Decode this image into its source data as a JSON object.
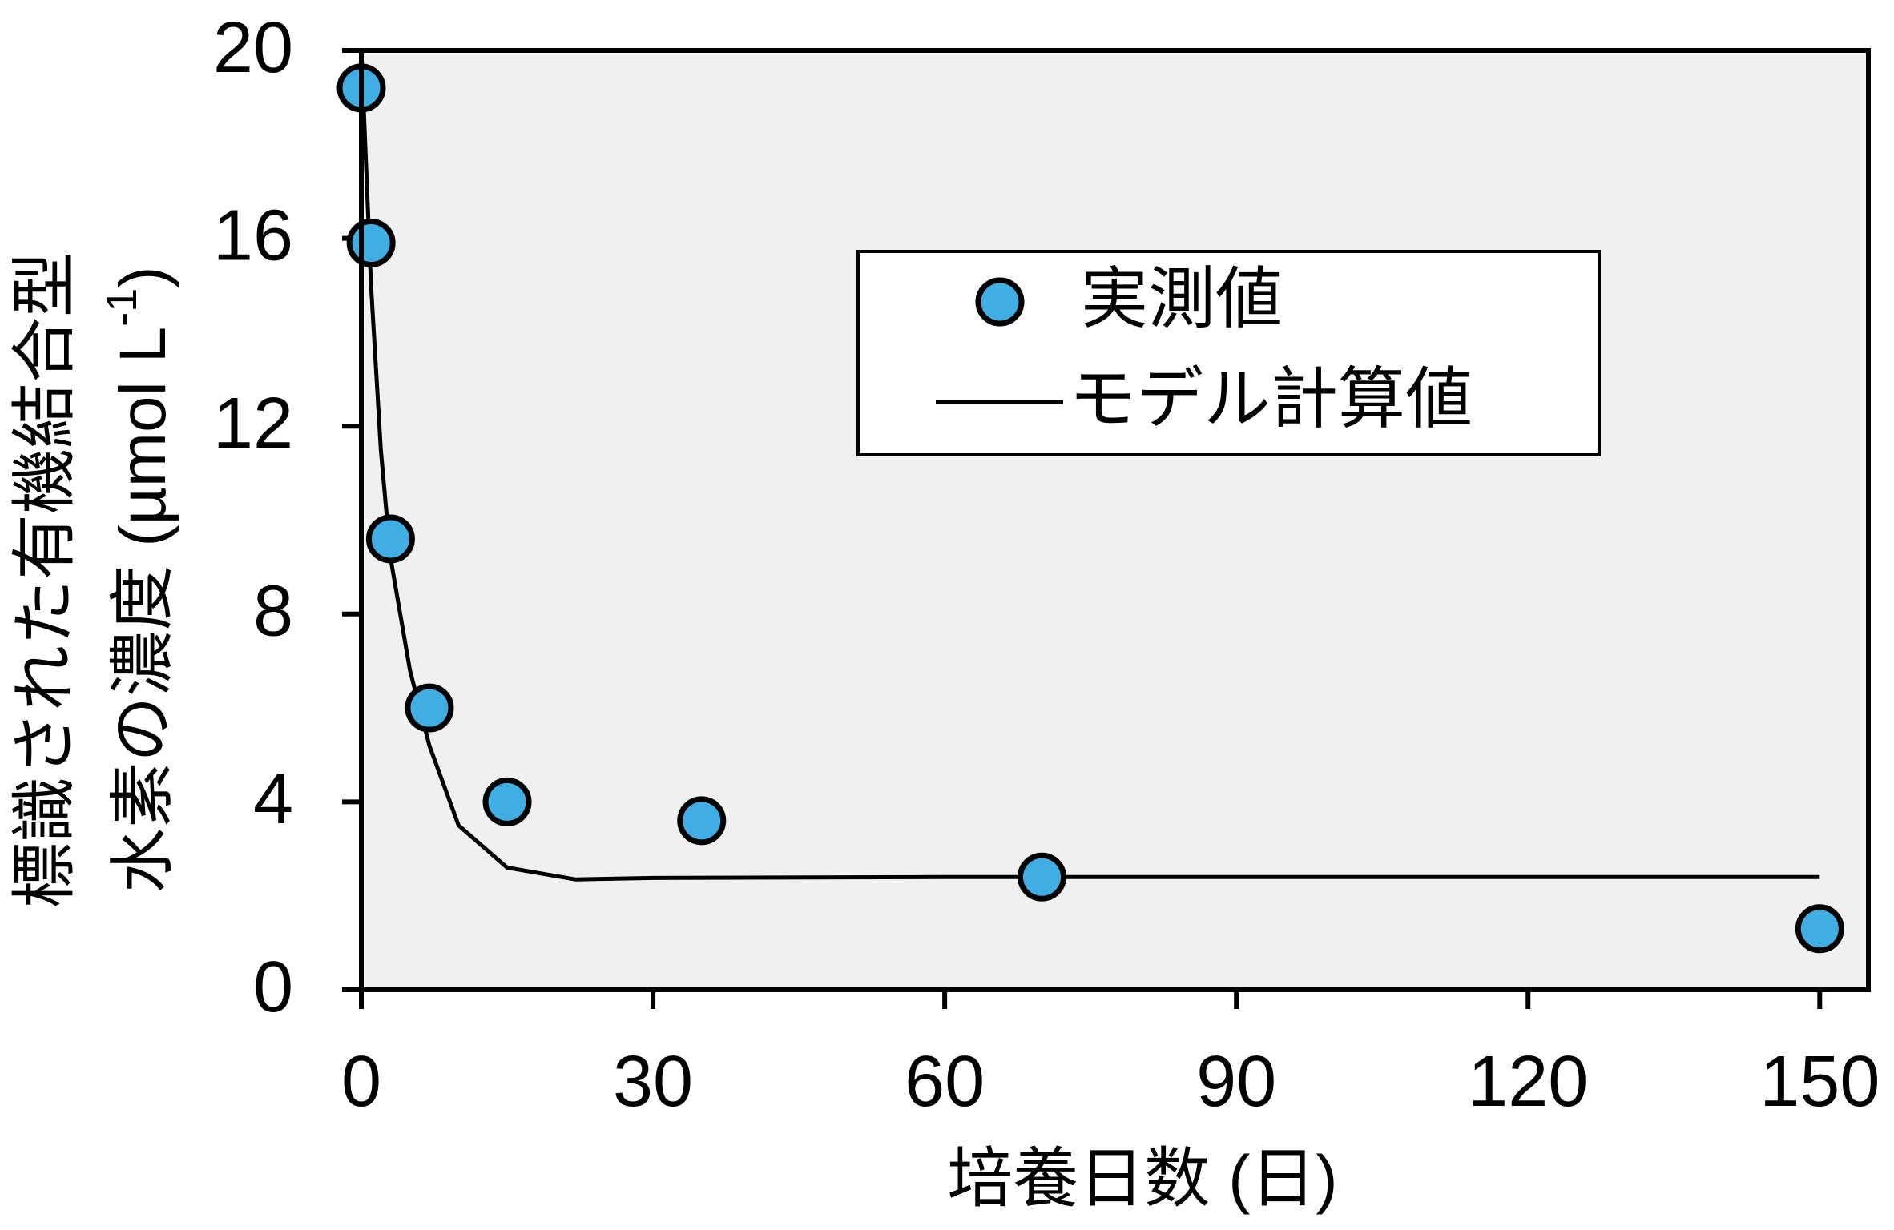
{
  "chart_data": {
    "type": "scatter",
    "y_label_line1": "標識された有機結合型",
    "y_label_line2": "水素の濃度 (µmol L",
    "y_label_sup": "-1",
    "y_label_end": ")",
    "x_label": "培養日数 (日)",
    "xlim": [
      0,
      155
    ],
    "ylim": [
      0,
      20
    ],
    "xticks": [
      0,
      30,
      60,
      90,
      120,
      150
    ],
    "yticks": [
      0,
      4,
      8,
      12,
      16,
      20
    ],
    "grid": false,
    "background": "#f0f0f0",
    "legend": "center right",
    "series": [
      {
        "name": "実測値",
        "type": "scatter",
        "color": "#41aee3",
        "x": [
          0,
          1,
          3,
          7,
          15,
          35,
          70,
          150
        ],
        "values": [
          19.2,
          15.9,
          9.6,
          6.0,
          4.0,
          3.6,
          2.4,
          1.3
        ]
      },
      {
        "name": "モデル計算値",
        "type": "line",
        "color": "#000000",
        "x": [
          0,
          1,
          2,
          3,
          5,
          7,
          10,
          15,
          22,
          30,
          60,
          100,
          150
        ],
        "values": [
          20,
          15,
          11.5,
          9.2,
          6.8,
          5.2,
          3.5,
          2.6,
          2.35,
          2.38,
          2.4,
          2.4,
          2.4
        ]
      }
    ]
  }
}
